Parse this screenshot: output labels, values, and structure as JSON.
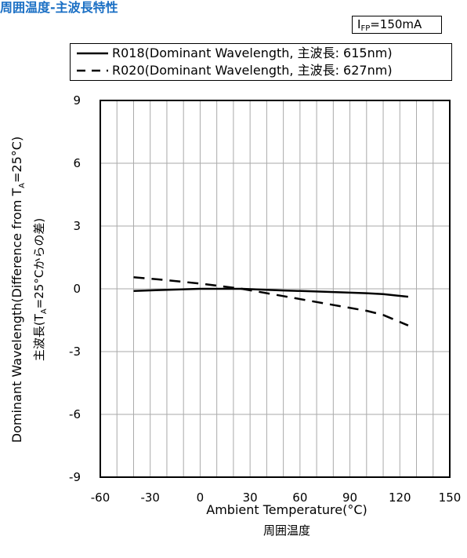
{
  "title": "周囲温度-主波長特性",
  "condition": {
    "symbol": "I",
    "subscript": "FP",
    "value": "=150mA"
  },
  "chart_data": {
    "type": "line",
    "title": "周囲温度-主波長特性",
    "xlabel": "Ambient Temperature(°C)",
    "xlabel_sub": "周囲温度",
    "ylabel": "Dominant Wavelength(Difference from T",
    "ylabel_sub_a": "A",
    "ylabel_tail": "=25°C)",
    "ylabel2": "主波長(T",
    "ylabel2_sub_a": "A",
    "ylabel2_tail": "=25°Cからの差)",
    "xlim": [
      -60,
      150
    ],
    "ylim": [
      -9,
      9
    ],
    "xticks": [
      -60,
      -30,
      0,
      30,
      60,
      90,
      120,
      150
    ],
    "yticks": [
      9,
      6,
      3,
      0,
      -3,
      -6,
      -9
    ],
    "grid": true,
    "legend_position": "top",
    "series": [
      {
        "name": "R018(Dominant Wavelength, 主波長: 615nm)",
        "style": "solid",
        "x": [
          -40,
          -25,
          0,
          25,
          50,
          75,
          100,
          110,
          125
        ],
        "y": [
          -0.1,
          -0.06,
          0.0,
          0.0,
          -0.08,
          -0.14,
          -0.21,
          -0.25,
          -0.38
        ]
      },
      {
        "name": "R020(Dominant Wavelength, 主波長: 627nm)",
        "style": "dashed",
        "x": [
          -40,
          -25,
          0,
          25,
          50,
          75,
          100,
          110,
          125
        ],
        "y": [
          0.55,
          0.45,
          0.25,
          0.0,
          -0.35,
          -0.7,
          -1.05,
          -1.25,
          -1.75
        ]
      }
    ]
  }
}
